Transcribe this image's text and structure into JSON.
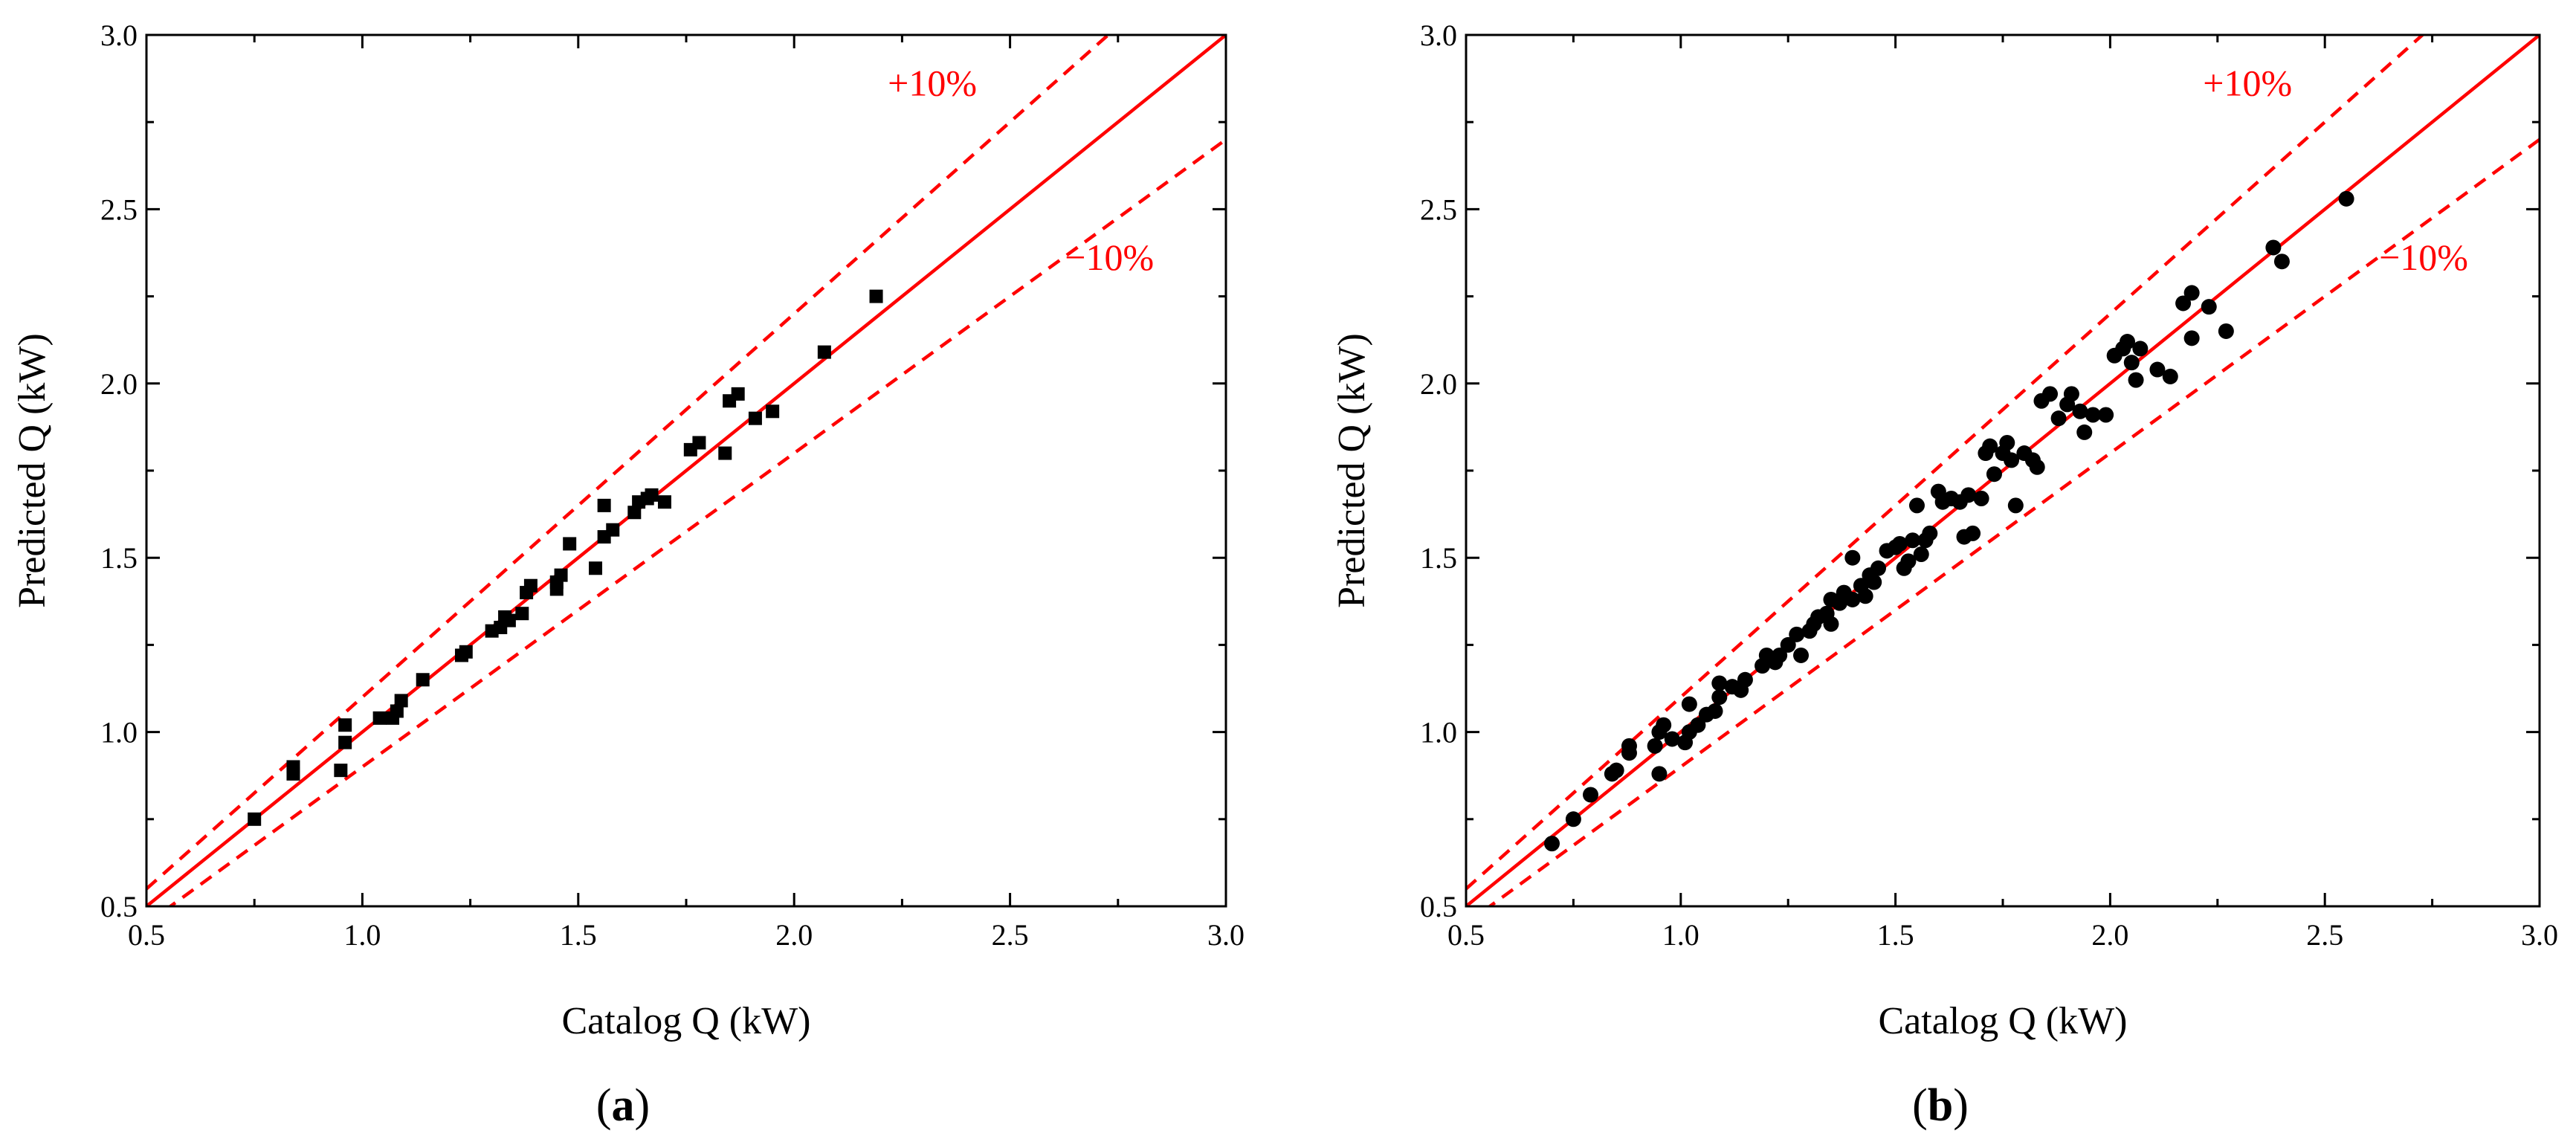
{
  "colors": {
    "reference": "#ff0000",
    "marker": "#000000",
    "axis": "#000000"
  },
  "chart_data": [
    {
      "type": "scatter",
      "panel_label": "(a)",
      "panel_letter": "a",
      "marker": "square",
      "xlabel": "Catalog Q (kW)",
      "ylabel": "Predicted Q (kW)",
      "xlim": [
        0.5,
        3.0
      ],
      "ylim": [
        0.5,
        3.0
      ],
      "xticks": [
        "0.5",
        "1.0",
        "1.5",
        "2.0",
        "2.5",
        "3.0"
      ],
      "yticks": [
        "0.5",
        "1.0",
        "1.5",
        "2.0",
        "2.5",
        "3.0"
      ],
      "reference_lines": [
        {
          "name": "y=x",
          "factor": 1.0,
          "style": "solid"
        },
        {
          "name": "+10%",
          "factor": 1.1,
          "style": "dashed"
        },
        {
          "name": "-10%",
          "factor": 0.9,
          "style": "dashed"
        }
      ],
      "upper_label": "+10%",
      "lower_label": "−10%",
      "points": [
        [
          0.75,
          0.75
        ],
        [
          0.84,
          0.88
        ],
        [
          0.84,
          0.9
        ],
        [
          0.95,
          0.89
        ],
        [
          0.96,
          0.97
        ],
        [
          0.96,
          1.02
        ],
        [
          1.04,
          1.04
        ],
        [
          1.07,
          1.04
        ],
        [
          1.08,
          1.06
        ],
        [
          1.09,
          1.09
        ],
        [
          1.14,
          1.15
        ],
        [
          1.23,
          1.22
        ],
        [
          1.24,
          1.23
        ],
        [
          1.3,
          1.29
        ],
        [
          1.32,
          1.3
        ],
        [
          1.33,
          1.33
        ],
        [
          1.34,
          1.32
        ],
        [
          1.37,
          1.34
        ],
        [
          1.38,
          1.4
        ],
        [
          1.39,
          1.42
        ],
        [
          1.45,
          1.41
        ],
        [
          1.45,
          1.43
        ],
        [
          1.46,
          1.45
        ],
        [
          1.48,
          1.54
        ],
        [
          1.54,
          1.47
        ],
        [
          1.56,
          1.56
        ],
        [
          1.56,
          1.65
        ],
        [
          1.58,
          1.58
        ],
        [
          1.63,
          1.63
        ],
        [
          1.64,
          1.66
        ],
        [
          1.66,
          1.67
        ],
        [
          1.67,
          1.68
        ],
        [
          1.7,
          1.66
        ],
        [
          1.76,
          1.81
        ],
        [
          1.78,
          1.83
        ],
        [
          1.84,
          1.8
        ],
        [
          1.85,
          1.95
        ],
        [
          1.87,
          1.97
        ],
        [
          1.91,
          1.9
        ],
        [
          1.95,
          1.92
        ],
        [
          2.07,
          2.09
        ],
        [
          2.19,
          2.25
        ]
      ]
    },
    {
      "type": "scatter",
      "panel_label": "(b)",
      "panel_letter": "b",
      "marker": "circle",
      "xlabel": "Catalog Q (kW)",
      "ylabel": "Predicted Q (kW)",
      "xlim": [
        0.5,
        3.0
      ],
      "ylim": [
        0.5,
        3.0
      ],
      "xticks": [
        "0.5",
        "1.0",
        "1.5",
        "2.0",
        "2.5",
        "3.0"
      ],
      "yticks": [
        "0.5",
        "1.0",
        "1.5",
        "2.0",
        "2.5",
        "3.0"
      ],
      "reference_lines": [
        {
          "name": "y=x",
          "factor": 1.0,
          "style": "solid"
        },
        {
          "name": "+10%",
          "factor": 1.1,
          "style": "dashed"
        },
        {
          "name": "-10%",
          "factor": 0.9,
          "style": "dashed"
        }
      ],
      "upper_label": "+10%",
      "lower_label": "−10%",
      "points": [
        [
          0.7,
          0.68
        ],
        [
          0.75,
          0.75
        ],
        [
          0.79,
          0.82
        ],
        [
          0.84,
          0.88
        ],
        [
          0.85,
          0.89
        ],
        [
          0.88,
          0.94
        ],
        [
          0.88,
          0.96
        ],
        [
          0.94,
          0.96
        ],
        [
          0.95,
          0.88
        ],
        [
          0.95,
          1.0
        ],
        [
          0.96,
          1.02
        ],
        [
          0.98,
          0.98
        ],
        [
          1.01,
          0.97
        ],
        [
          1.02,
          1.0
        ],
        [
          1.02,
          1.08
        ],
        [
          1.04,
          1.02
        ],
        [
          1.06,
          1.05
        ],
        [
          1.08,
          1.06
        ],
        [
          1.09,
          1.1
        ],
        [
          1.09,
          1.14
        ],
        [
          1.12,
          1.13
        ],
        [
          1.14,
          1.12
        ],
        [
          1.15,
          1.15
        ],
        [
          1.19,
          1.19
        ],
        [
          1.2,
          1.22
        ],
        [
          1.22,
          1.2
        ],
        [
          1.23,
          1.22
        ],
        [
          1.25,
          1.25
        ],
        [
          1.27,
          1.28
        ],
        [
          1.28,
          1.22
        ],
        [
          1.3,
          1.29
        ],
        [
          1.31,
          1.31
        ],
        [
          1.32,
          1.33
        ],
        [
          1.34,
          1.34
        ],
        [
          1.35,
          1.31
        ],
        [
          1.35,
          1.38
        ],
        [
          1.37,
          1.37
        ],
        [
          1.38,
          1.4
        ],
        [
          1.4,
          1.38
        ],
        [
          1.4,
          1.5
        ],
        [
          1.42,
          1.42
        ],
        [
          1.43,
          1.39
        ],
        [
          1.44,
          1.45
        ],
        [
          1.45,
          1.43
        ],
        [
          1.46,
          1.47
        ],
        [
          1.48,
          1.52
        ],
        [
          1.5,
          1.53
        ],
        [
          1.51,
          1.54
        ],
        [
          1.52,
          1.47
        ],
        [
          1.53,
          1.49
        ],
        [
          1.54,
          1.55
        ],
        [
          1.55,
          1.65
        ],
        [
          1.56,
          1.51
        ],
        [
          1.57,
          1.55
        ],
        [
          1.58,
          1.57
        ],
        [
          1.6,
          1.69
        ],
        [
          1.61,
          1.66
        ],
        [
          1.63,
          1.67
        ],
        [
          1.65,
          1.66
        ],
        [
          1.66,
          1.56
        ],
        [
          1.67,
          1.68
        ],
        [
          1.68,
          1.57
        ],
        [
          1.7,
          1.67
        ],
        [
          1.71,
          1.8
        ],
        [
          1.72,
          1.82
        ],
        [
          1.73,
          1.74
        ],
        [
          1.75,
          1.8
        ],
        [
          1.76,
          1.83
        ],
        [
          1.77,
          1.78
        ],
        [
          1.78,
          1.65
        ],
        [
          1.8,
          1.8
        ],
        [
          1.82,
          1.78
        ],
        [
          1.83,
          1.76
        ],
        [
          1.84,
          1.95
        ],
        [
          1.86,
          1.97
        ],
        [
          1.88,
          1.9
        ],
        [
          1.9,
          1.94
        ],
        [
          1.91,
          1.97
        ],
        [
          1.93,
          1.92
        ],
        [
          1.94,
          1.86
        ],
        [
          1.96,
          1.91
        ],
        [
          1.99,
          1.91
        ],
        [
          2.01,
          2.08
        ],
        [
          2.03,
          2.1
        ],
        [
          2.04,
          2.12
        ],
        [
          2.05,
          2.06
        ],
        [
          2.06,
          2.01
        ],
        [
          2.07,
          2.1
        ],
        [
          2.11,
          2.04
        ],
        [
          2.14,
          2.02
        ],
        [
          2.17,
          2.23
        ],
        [
          2.19,
          2.26
        ],
        [
          2.19,
          2.13
        ],
        [
          2.23,
          2.22
        ],
        [
          2.27,
          2.15
        ],
        [
          2.38,
          2.39
        ],
        [
          2.4,
          2.35
        ],
        [
          2.55,
          2.53
        ]
      ]
    }
  ]
}
